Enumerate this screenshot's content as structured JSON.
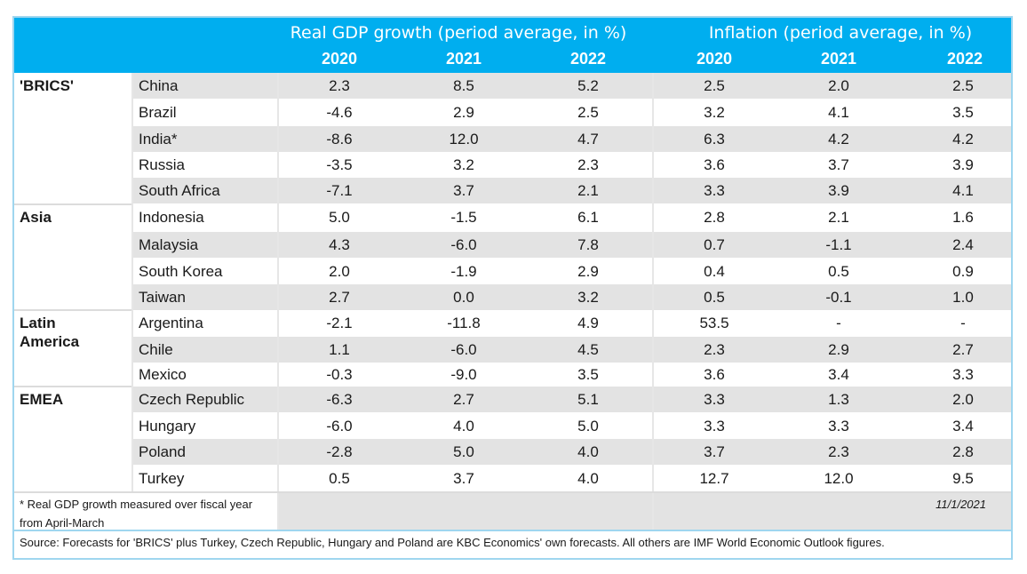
{
  "header": {
    "gdp_title": "Real GDP growth (period average, in %)",
    "inflation_title": "Inflation (period average, in %)",
    "years": [
      "2020",
      "2021",
      "2022",
      "2020",
      "2021",
      "2022"
    ]
  },
  "regions": [
    {
      "name": "'BRICS'",
      "rows": [
        {
          "country": "China",
          "gdp": [
            "2.3",
            "8.5",
            "5.2"
          ],
          "inf": [
            "2.5",
            "2.0",
            "2.5"
          ]
        },
        {
          "country": "Brazil",
          "gdp": [
            "-4.6",
            "2.9",
            "2.5"
          ],
          "inf": [
            "3.2",
            "4.1",
            "3.5"
          ]
        },
        {
          "country": "India*",
          "gdp": [
            "-8.6",
            "12.0",
            "4.7"
          ],
          "inf": [
            "6.3",
            "4.2",
            "4.2"
          ]
        },
        {
          "country": "Russia",
          "gdp": [
            "-3.5",
            "3.2",
            "2.3"
          ],
          "inf": [
            "3.6",
            "3.7",
            "3.9"
          ]
        },
        {
          "country": "South Africa",
          "gdp": [
            "-7.1",
            "3.7",
            "2.1"
          ],
          "inf": [
            "3.3",
            "3.9",
            "4.1"
          ]
        }
      ]
    },
    {
      "name": "Asia",
      "rows": [
        {
          "country": "Indonesia",
          "gdp": [
            "5.0",
            "-1.5",
            "6.1"
          ],
          "inf": [
            "2.8",
            "2.1",
            "1.6"
          ]
        },
        {
          "country": "Malaysia",
          "gdp": [
            "4.3",
            "-6.0",
            "7.8"
          ],
          "inf": [
            "0.7",
            "-1.1",
            "2.4"
          ]
        },
        {
          "country": "South Korea",
          "gdp": [
            "2.0",
            "-1.9",
            "2.9"
          ],
          "inf": [
            "0.4",
            "0.5",
            "0.9"
          ]
        },
        {
          "country": "Taiwan",
          "gdp": [
            "2.7",
            "0.0",
            "3.2"
          ],
          "inf": [
            "0.5",
            "-0.1",
            "1.0"
          ]
        }
      ]
    },
    {
      "name": "Latin\nAmerica",
      "rows": [
        {
          "country": "Argentina",
          "gdp": [
            "-2.1",
            "-11.8",
            "4.9"
          ],
          "inf": [
            "53.5",
            "-",
            "-"
          ]
        },
        {
          "country": "Chile",
          "gdp": [
            "1.1",
            "-6.0",
            "4.5"
          ],
          "inf": [
            "2.3",
            "2.9",
            "2.7"
          ]
        },
        {
          "country": "Mexico",
          "gdp": [
            "-0.3",
            "-9.0",
            "3.5"
          ],
          "inf": [
            "3.6",
            "3.4",
            "3.3"
          ]
        }
      ]
    },
    {
      "name": "EMEA",
      "rows": [
        {
          "country": "Czech Republic",
          "gdp": [
            "-6.3",
            "2.7",
            "5.1"
          ],
          "inf": [
            "3.3",
            "1.3",
            "2.0"
          ]
        },
        {
          "country": "Hungary",
          "gdp": [
            "-6.0",
            "4.0",
            "5.0"
          ],
          "inf": [
            "3.3",
            "3.3",
            "3.4"
          ]
        },
        {
          "country": "Poland",
          "gdp": [
            "-2.8",
            "5.0",
            "4.0"
          ],
          "inf": [
            "3.7",
            "2.3",
            "2.8"
          ]
        },
        {
          "country": "Turkey",
          "gdp": [
            "0.5",
            "3.7",
            "4.0"
          ],
          "inf": [
            "12.7",
            "12.0",
            "9.5"
          ]
        }
      ]
    }
  ],
  "footnote": "* Real GDP growth measured over fiscal year from April-March",
  "date": "11/1/2021",
  "source": "Source: Forecasts for 'BRICS' plus Turkey, Czech Republic, Hungary and Poland are KBC Economics' own forecasts. All others are IMF World Economic Outlook figures."
}
